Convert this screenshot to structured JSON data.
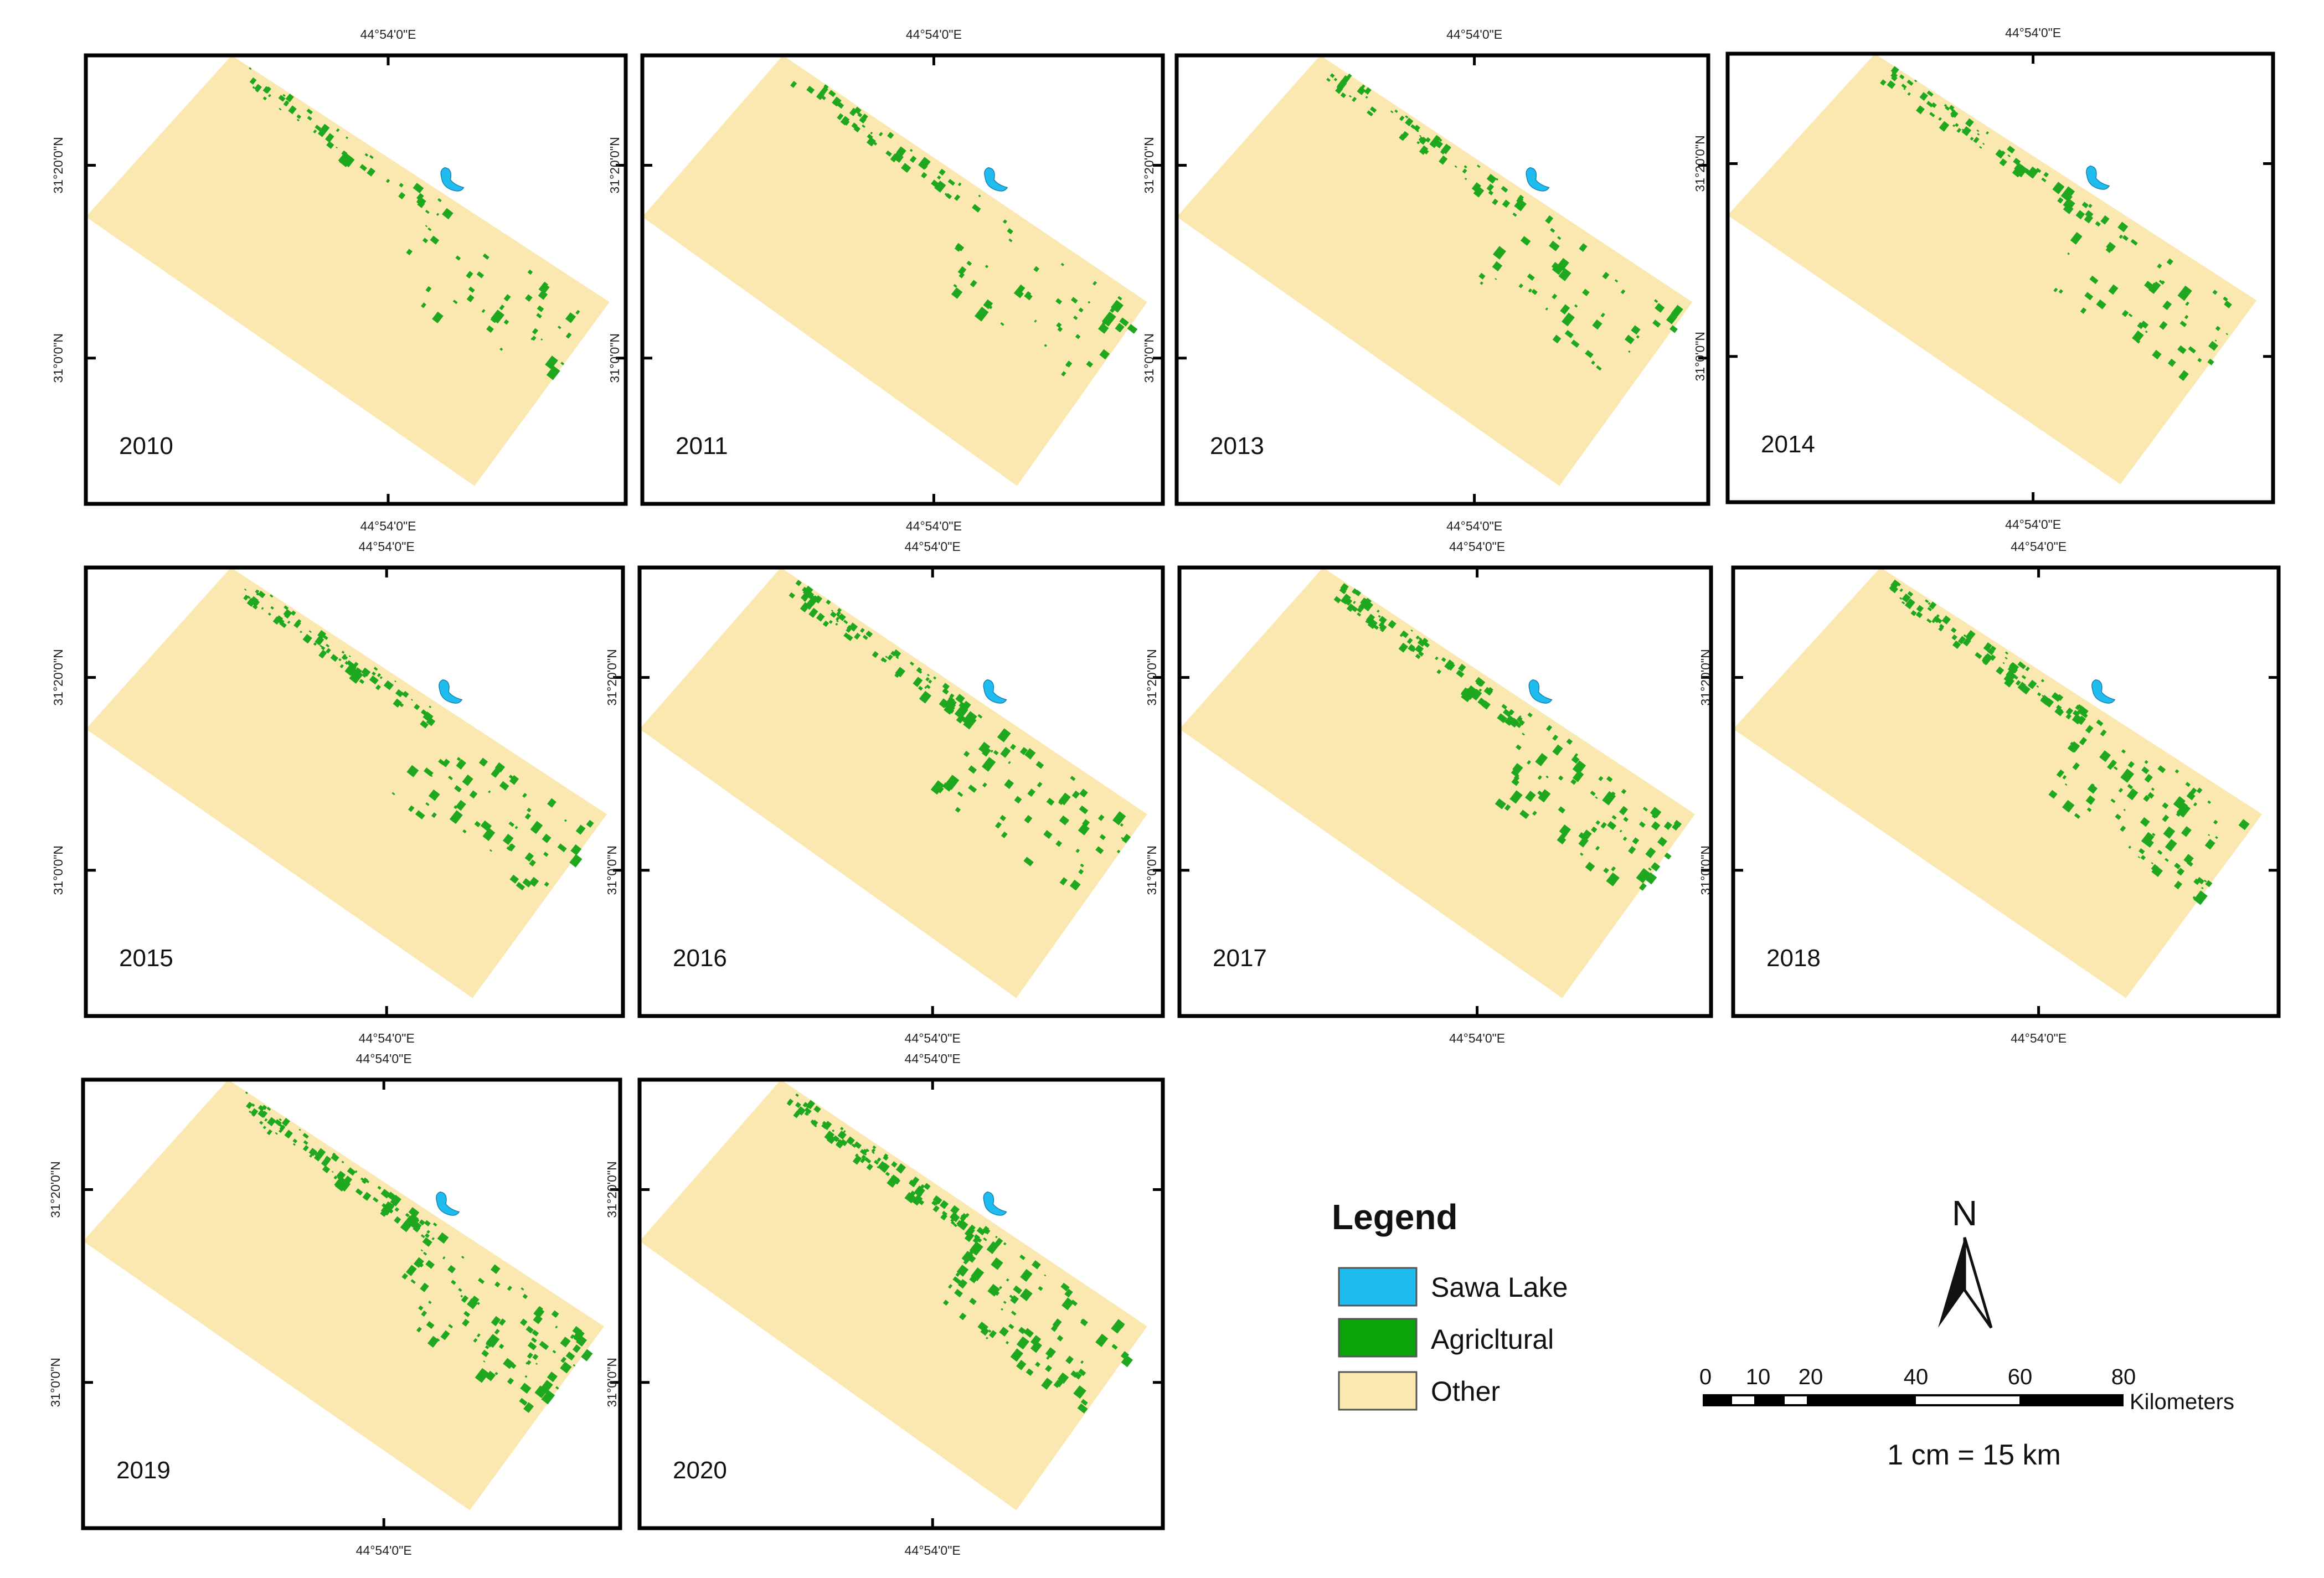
{
  "panels": [
    {
      "year": "2010",
      "lon_label": "44°54'0\"E",
      "lat_labels": [
        "31°20'0\"N",
        "31°0'0\"N"
      ]
    },
    {
      "year": "2011",
      "lon_label": "44°54'0\"E",
      "lat_labels": [
        "31°20'0\"N",
        "31°0'0\"N"
      ]
    },
    {
      "year": "2013",
      "lon_label": "44°54'0\"E",
      "lat_labels": [
        "31°20'0\"N",
        "31°0'0\"N"
      ]
    },
    {
      "year": "2014",
      "lon_label": "44°54'0\"E",
      "lat_labels": [
        "31°20'0\"N",
        "31°0'0\"N"
      ]
    },
    {
      "year": "2015",
      "lon_label": "44°54'0\"E",
      "lat_labels": [
        "31°20'0\"N",
        "31°0'0\"N"
      ]
    },
    {
      "year": "2016",
      "lon_label": "44°54'0\"E",
      "lat_labels": [
        "31°20'0\"N",
        "31°0'0\"N"
      ]
    },
    {
      "year": "2017",
      "lon_label": "44°54'0\"E",
      "lat_labels": [
        "31°20'0\"N",
        "31°0'0\"N"
      ]
    },
    {
      "year": "2018",
      "lon_label": "44°54'0\"E",
      "lat_labels": [
        "31°20'0\"N",
        "31°0'0\"N"
      ]
    },
    {
      "year": "2019",
      "lon_label": "44°54'0\"E",
      "lat_labels": [
        "31°20'0\"N",
        "31°0'0\"N"
      ]
    },
    {
      "year": "2020",
      "lon_label": "44°54'0\"E",
      "lat_labels": [
        "31°20'0\"N",
        "31°0'0\"N"
      ]
    }
  ],
  "legend": {
    "title": "Legend",
    "items": [
      {
        "label": "Sawa Lake",
        "color": "#1fbcef"
      },
      {
        "label": "Agricltural",
        "color": "#1fa81f"
      },
      {
        "label": "Other",
        "color": "#fbe8b0"
      }
    ]
  },
  "north_arrow": {
    "letter": "N"
  },
  "scale_bar": {
    "ticks": [
      "0",
      "10",
      "20",
      "40",
      "60",
      "80"
    ],
    "unit": "Kilometers",
    "ratio": "1 cm = 15 km"
  }
}
